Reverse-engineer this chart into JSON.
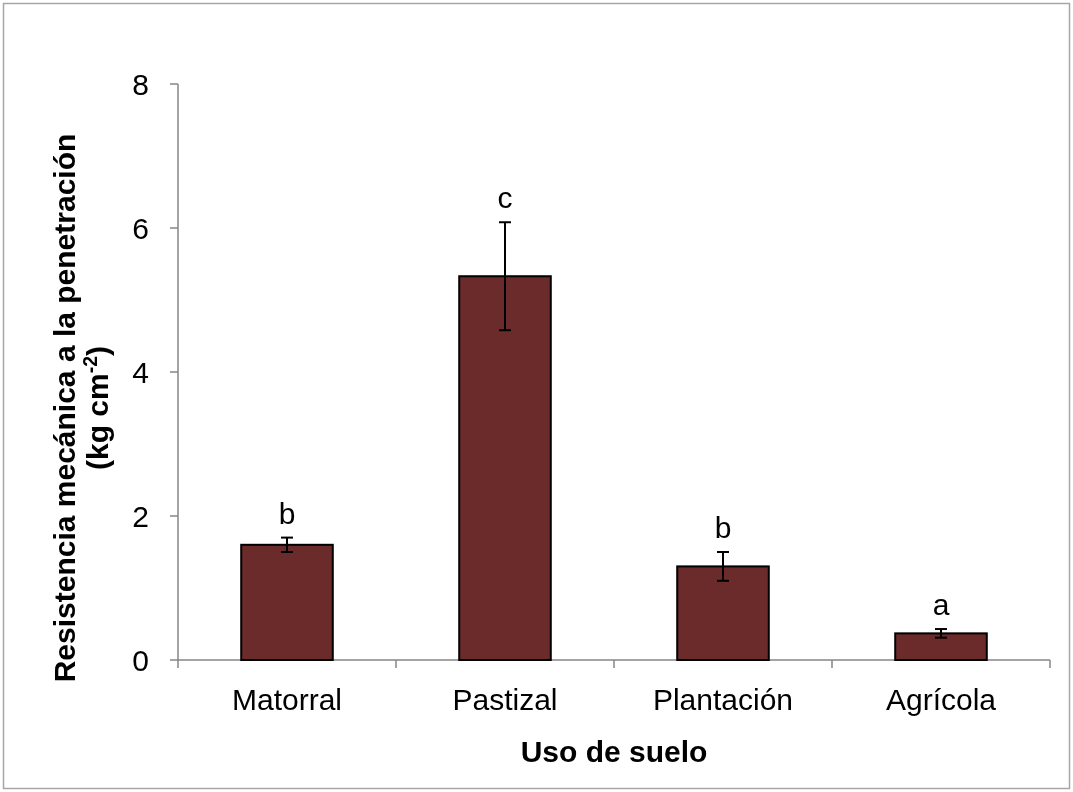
{
  "chart_data": {
    "type": "bar",
    "xlabel": "Uso de suelo",
    "ylabel": "Resistencia mecánica a la penetración\n(kg cm$^{-2}$)",
    "categories": [
      "Matorral",
      "Pastizal",
      "Plantación",
      "Agrícola"
    ],
    "values": [
      1.6,
      5.33,
      1.3,
      0.37
    ],
    "errors": [
      0.1,
      0.75,
      0.2,
      0.06
    ],
    "color": "#6b2b2b",
    "ylim": [
      0,
      8
    ],
    "yticks": [
      0,
      2,
      4,
      6,
      8
    ],
    "annotations": [
      {
        "text": "b",
        "x": "Matorral",
        "y": 1.7
      },
      {
        "text": "c",
        "x": "Pastizal",
        "y": 6.08
      },
      {
        "text": "b",
        "x": "Plantación",
        "y": 1.5
      },
      {
        "text": "a",
        "x": "Agrícola",
        "y": 0.43
      }
    ]
  }
}
